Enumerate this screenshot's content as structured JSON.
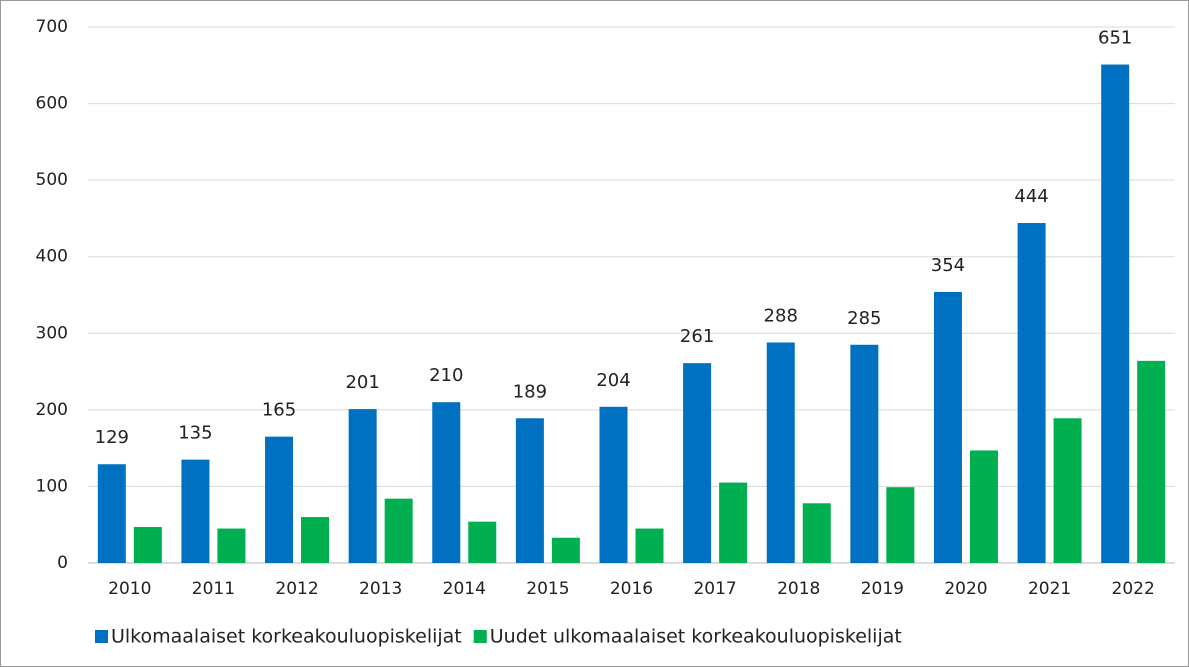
{
  "chart_data": {
    "type": "bar",
    "categories": [
      "2010",
      "2011",
      "2012",
      "2013",
      "2014",
      "2015",
      "2016",
      "2017",
      "2018",
      "2019",
      "2020",
      "2021",
      "2022"
    ],
    "series": [
      {
        "name": "Ulkomaalaiset korkeakouluopiskelijat",
        "color": "#0070c0",
        "show_labels": true,
        "values": [
          129,
          135,
          165,
          201,
          210,
          189,
          204,
          261,
          288,
          285,
          354,
          444,
          651
        ]
      },
      {
        "name": "Uudet ulkomaalaiset korkeakouluopiskelijat",
        "color": "#00b050",
        "show_labels": false,
        "values": [
          47,
          45,
          60,
          84,
          54,
          33,
          45,
          105,
          78,
          99,
          147,
          189,
          264
        ]
      }
    ],
    "ylim": [
      0,
      700
    ],
    "yticks": [
      0,
      100,
      200,
      300,
      400,
      500,
      600,
      700
    ],
    "grid": true,
    "legend": "bottom"
  }
}
